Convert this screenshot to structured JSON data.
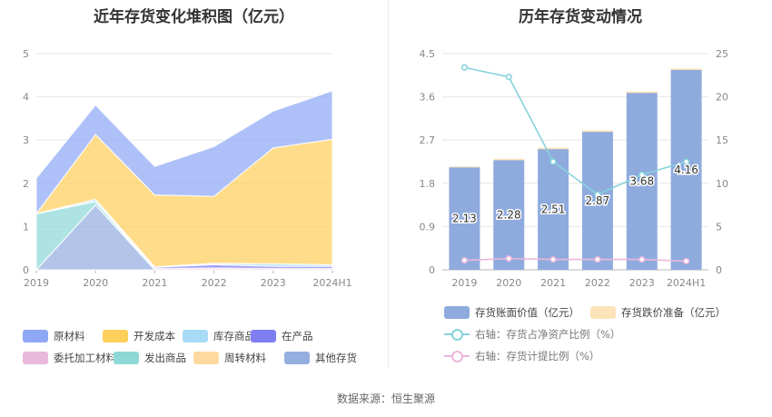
{
  "source": "数据来源：恒生聚源",
  "chart_data": [
    {
      "type": "area",
      "stacked": true,
      "title": "近年存货变化堆积图（亿元）",
      "x": [
        "2019",
        "2020",
        "2021",
        "2022",
        "2023",
        "2024H1"
      ],
      "ylim": [
        0,
        5
      ],
      "yticks": [
        "0",
        "1",
        "2",
        "3",
        "4",
        "5"
      ],
      "grid": true,
      "legend_position": "bottom",
      "series": [
        {
          "name": "原材料",
          "color": "#8fa8f5",
          "values": [
            0.82,
            0.68,
            0.66,
            1.15,
            0.85,
            1.12
          ]
        },
        {
          "name": "开发成本",
          "color": "#ffcf5c",
          "values": [
            0.0,
            1.5,
            1.66,
            1.55,
            2.68,
            2.9
          ]
        },
        {
          "name": "库存商品",
          "color": "#a8dbf5",
          "values": [
            0.0,
            0.05,
            0.01,
            0.03,
            0.06,
            0.04
          ]
        },
        {
          "name": "在产品",
          "color": "#7f7ef0",
          "values": [
            0.0,
            0.0,
            0.03,
            0.08,
            0.05,
            0.05
          ]
        },
        {
          "name": "委托加工材料",
          "color": "#e9b9dc",
          "values": [
            0.0,
            0.0,
            0.03,
            0.04,
            0.03,
            0.03
          ]
        },
        {
          "name": "发出商品",
          "color": "#8fd8d8",
          "values": [
            1.3,
            0.08,
            0.0,
            0.0,
            0.0,
            0.0
          ]
        },
        {
          "name": "周转材料",
          "color": "#ffd9a0",
          "values": [
            0.0,
            0.0,
            0.0,
            0.0,
            0.0,
            0.0
          ]
        },
        {
          "name": "其他存货",
          "color": "#94aee0",
          "values": [
            0.0,
            1.5,
            0.0,
            0.0,
            0.0,
            0.0
          ]
        }
      ]
    },
    {
      "type": "bar",
      "title": "历年存货变动情况",
      "x": [
        "2019",
        "2020",
        "2021",
        "2022",
        "2023",
        "2024H1"
      ],
      "ylim": [
        0,
        4.5
      ],
      "yticks": [
        "0",
        "0.9",
        "1.8",
        "2.7",
        "3.6",
        "4.5"
      ],
      "y2lim": [
        0,
        25
      ],
      "y2ticks": [
        "0",
        "5",
        "10",
        "15",
        "20",
        "25"
      ],
      "grid": true,
      "legend_position": "bottom",
      "series": [
        {
          "name": "存货账面价值（亿元）",
          "kind": "bar",
          "color": "#8fabde",
          "values": [
            2.13,
            2.28,
            2.51,
            2.87,
            3.68,
            4.16
          ],
          "labels": [
            "2.13",
            "2.28",
            "2.51",
            "2.87",
            "3.68",
            "4.16"
          ]
        },
        {
          "name": "存货跌价准备（亿元）",
          "kind": "bar",
          "color": "#fde3b9",
          "values": [
            0.02,
            0.03,
            0.03,
            0.03,
            0.03,
            0.03
          ]
        },
        {
          "name": "右轴：存货占净资产比例（%）",
          "kind": "line",
          "axis": "right",
          "color": "#86d3dc",
          "values": [
            23.4,
            22.3,
            12.5,
            8.7,
            11.0,
            12.5
          ]
        },
        {
          "name": "右轴：存货计提比例（%）",
          "kind": "line",
          "axis": "right",
          "color": "#ebb7dc",
          "values": [
            1.1,
            1.3,
            1.2,
            1.2,
            1.2,
            1.0
          ]
        }
      ]
    }
  ]
}
